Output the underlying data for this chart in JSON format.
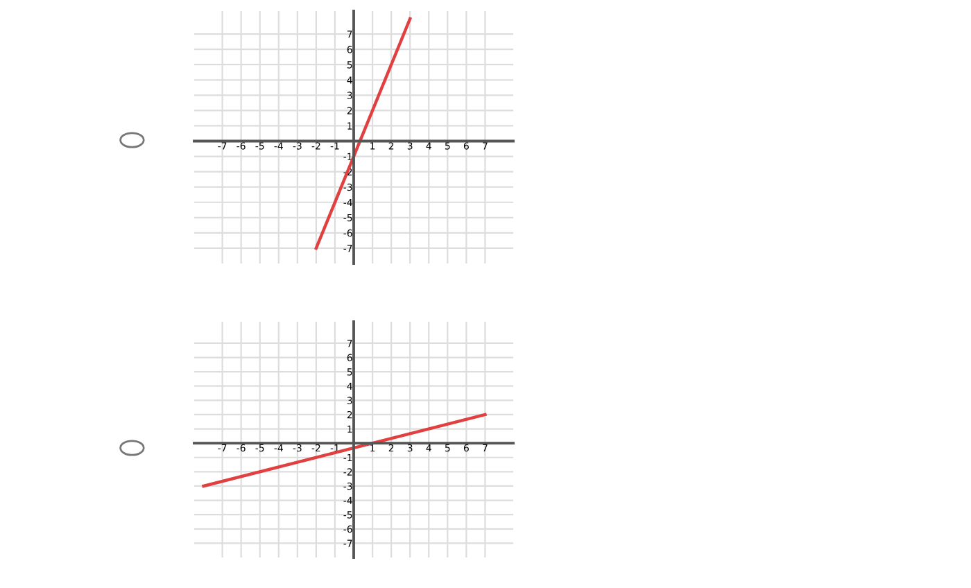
{
  "chart_data": [
    {
      "type": "line",
      "x": [
        -2,
        3
      ],
      "series": [
        {
          "color": "#e0403f",
          "values": [
            -7,
            8
          ]
        }
      ],
      "xlim": [
        -8.5,
        8.5
      ],
      "ylim": [
        -8,
        8.5
      ],
      "xticks": [
        -7,
        -6,
        -5,
        -4,
        -3,
        -2,
        -1,
        1,
        2,
        3,
        4,
        5,
        6,
        7
      ],
      "yticks": [
        -7,
        -6,
        -5,
        -4,
        -3,
        -2,
        -1,
        1,
        2,
        3,
        4,
        5,
        6,
        7
      ],
      "grid": true,
      "marker": "none"
    },
    {
      "type": "line",
      "x": [
        -8,
        7
      ],
      "series": [
        {
          "color": "#e0403f",
          "values": [
            -3,
            2
          ]
        }
      ],
      "xlim": [
        -8.5,
        8.5
      ],
      "ylim": [
        -8,
        8.5
      ],
      "xticks": [
        -7,
        -6,
        -5,
        -4,
        -3,
        -2,
        -1,
        1,
        2,
        3,
        4,
        5,
        6,
        7
      ],
      "yticks": [
        -7,
        -6,
        -5,
        -4,
        -3,
        -2,
        -1,
        1,
        2,
        3,
        4,
        5,
        6,
        7
      ],
      "grid": true,
      "marker": "none"
    }
  ]
}
